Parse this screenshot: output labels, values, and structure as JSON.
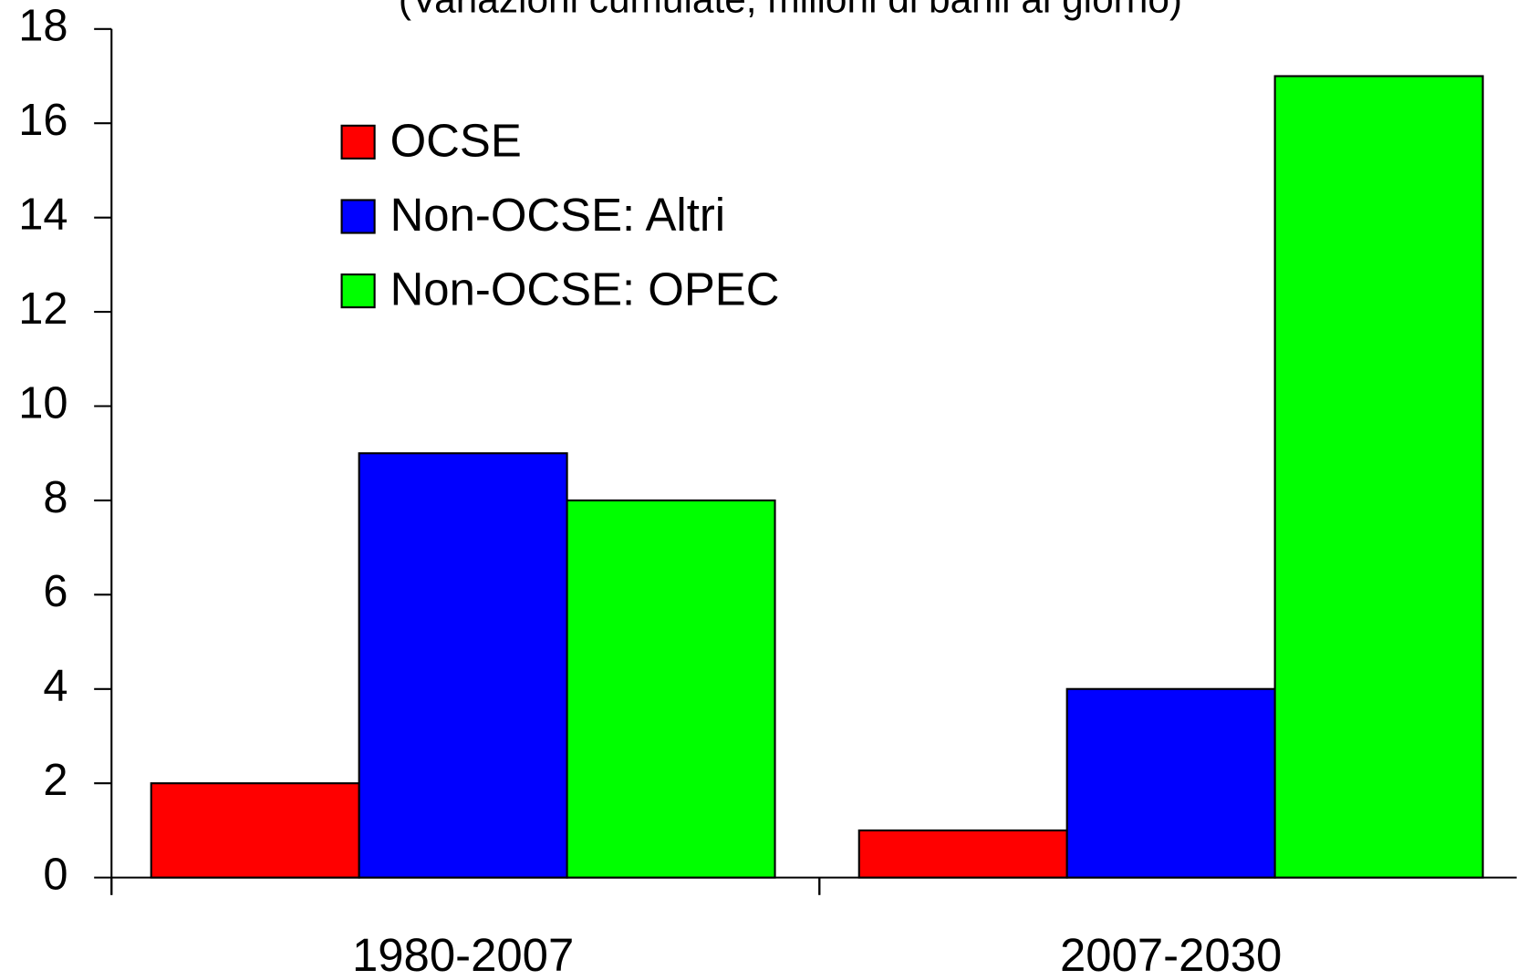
{
  "chart_data": {
    "type": "bar",
    "subtitle": "(Variazioni cumulate, milioni di barili al giorno)",
    "categories": [
      "1980-2007",
      "2007-2030"
    ],
    "series": [
      {
        "name": "OCSE",
        "color": "#ff0000",
        "values": [
          2,
          1
        ]
      },
      {
        "name": "Non-OCSE: Altri",
        "color": "#0000ff",
        "values": [
          9,
          4
        ]
      },
      {
        "name": "Non-OCSE: OPEC",
        "color": "#00ff00",
        "values": [
          8,
          17
        ]
      }
    ],
    "ylim": [
      0,
      18
    ],
    "yticks": [
      0,
      2,
      4,
      6,
      8,
      10,
      12,
      14,
      16,
      18
    ],
    "legend": "upper left",
    "grid": false
  }
}
